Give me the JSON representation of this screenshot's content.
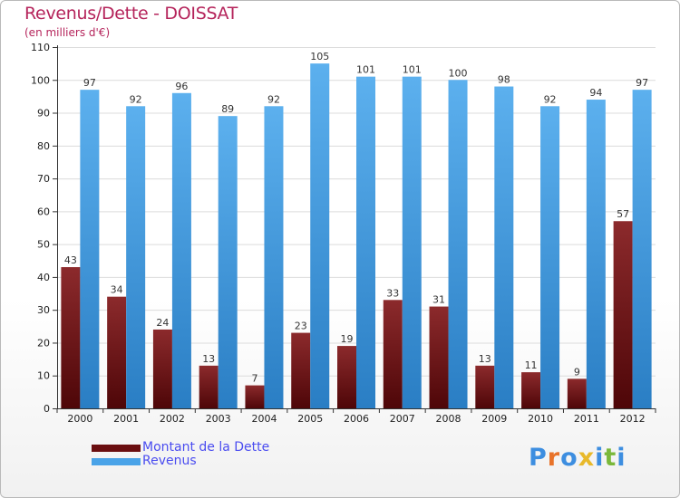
{
  "chart_data": {
    "type": "bar",
    "title": "Revenus/Dette - DOISSAT",
    "subtitle": "(en milliers d'€)",
    "categories": [
      "2000",
      "2001",
      "2002",
      "2003",
      "2004",
      "2005",
      "2006",
      "2007",
      "2008",
      "2009",
      "2010",
      "2011",
      "2012"
    ],
    "series": [
      {
        "name": "Montant de la Dette",
        "color": "#7a1518",
        "values": [
          43,
          34,
          24,
          13,
          7,
          23,
          19,
          33,
          31,
          13,
          11,
          9,
          57
        ]
      },
      {
        "name": "Revenus",
        "color": "#4aa3e8",
        "values": [
          97,
          92,
          96,
          89,
          92,
          105,
          101,
          101,
          100,
          98,
          92,
          94,
          97
        ]
      }
    ],
    "ylim": [
      0,
      110
    ],
    "yticks": [
      0,
      10,
      20,
      30,
      40,
      50,
      60,
      70,
      80,
      90,
      100,
      110
    ],
    "grid": true,
    "legend_position": "bottom-left",
    "xlabel": "",
    "ylabel": ""
  },
  "logo": {
    "text": "Proxiti",
    "colors": [
      "#3d8ee0",
      "#e8732a",
      "#3d8ee0",
      "#e8b92a",
      "#3d8ee0",
      "#7ab83a",
      "#3d8ee0"
    ]
  }
}
